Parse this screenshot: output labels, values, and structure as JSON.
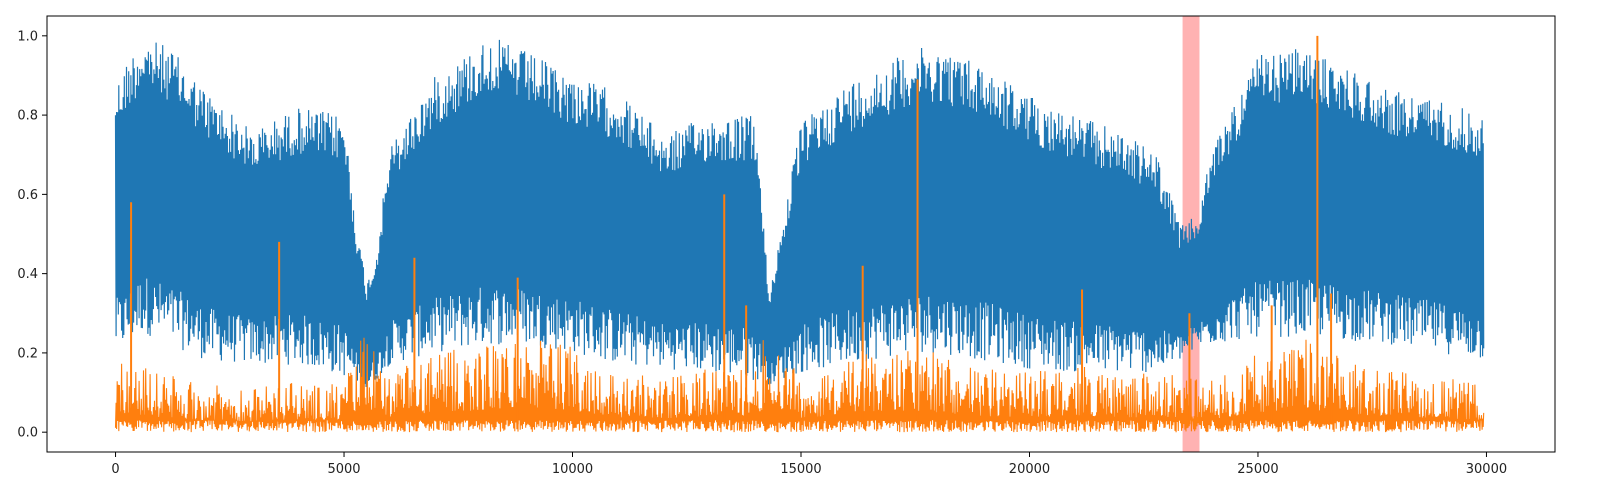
{
  "chart_data": {
    "type": "line",
    "title": "",
    "xlabel": "",
    "ylabel": "",
    "xlim": [
      -1500,
      31500
    ],
    "ylim": [
      -0.05,
      1.05
    ],
    "x_ticks": [
      0,
      5000,
      10000,
      15000,
      20000,
      25000,
      30000
    ],
    "y_ticks": [
      0.0,
      0.2,
      0.4,
      0.6,
      0.8,
      1.0
    ],
    "x_tick_labels": [
      "0",
      "5000",
      "10000",
      "15000",
      "20000",
      "25000",
      "30000"
    ],
    "y_tick_labels": [
      "0.0",
      "0.2",
      "0.4",
      "0.6",
      "0.8",
      "1.0"
    ],
    "grid": false,
    "legend": "none",
    "highlight_region": {
      "x_start": 23350,
      "x_end": 23720,
      "color": "#ff0000",
      "alpha": 0.3
    },
    "series": [
      {
        "color": "#1f77b4",
        "x_range": [
          0,
          29950
        ],
        "envelope": {
          "x": [
            0,
            300,
            600,
            1200,
            2000,
            3000,
            4000,
            5000,
            5300,
            5500,
            5700,
            6000,
            7000,
            8200,
            9000,
            10000,
            11000,
            12000,
            13000,
            14000,
            14300,
            15000,
            16000,
            17000,
            17500,
            18000,
            19000,
            20000,
            21000,
            22000,
            22800,
            23300,
            23700,
            24000,
            25000,
            26000,
            26300,
            27000,
            28000,
            29000,
            29950
          ],
          "upper": [
            0.88,
            0.95,
            1.0,
            0.97,
            0.86,
            0.76,
            0.82,
            0.8,
            0.5,
            0.38,
            0.45,
            0.72,
            0.9,
            1.0,
            0.96,
            0.9,
            0.86,
            0.75,
            0.8,
            0.8,
            0.35,
            0.78,
            0.88,
            0.94,
            0.97,
            0.97,
            0.93,
            0.85,
            0.8,
            0.76,
            0.7,
            0.52,
            0.55,
            0.72,
            0.95,
            0.97,
            0.95,
            0.92,
            0.86,
            0.84,
            0.8
          ],
          "lower": [
            0.2,
            0.22,
            0.25,
            0.22,
            0.18,
            0.17,
            0.17,
            0.14,
            0.12,
            0.1,
            0.13,
            0.17,
            0.2,
            0.22,
            0.22,
            0.2,
            0.17,
            0.16,
            0.15,
            0.13,
            0.12,
            0.15,
            0.17,
            0.19,
            0.2,
            0.2,
            0.18,
            0.16,
            0.15,
            0.15,
            0.15,
            0.18,
            0.21,
            0.22,
            0.24,
            0.24,
            0.24,
            0.23,
            0.22,
            0.2,
            0.18
          ]
        }
      },
      {
        "color": "#ff7f0e",
        "x_range": [
          0,
          29950
        ],
        "envelope": {
          "x": [
            0,
            1000,
            2000,
            3000,
            4000,
            5000,
            5400,
            6000,
            7000,
            8000,
            9000,
            10000,
            11000,
            12000,
            13000,
            14000,
            14300,
            15000,
            16000,
            17000,
            18000,
            19000,
            20000,
            21000,
            22000,
            23000,
            24000,
            25000,
            26000,
            27000,
            28000,
            29000,
            29950
          ],
          "upper": [
            0.2,
            0.15,
            0.12,
            0.11,
            0.13,
            0.12,
            0.26,
            0.15,
            0.2,
            0.22,
            0.25,
            0.22,
            0.15,
            0.14,
            0.16,
            0.17,
            0.28,
            0.14,
            0.18,
            0.22,
            0.2,
            0.16,
            0.15,
            0.17,
            0.15,
            0.15,
            0.13,
            0.2,
            0.24,
            0.18,
            0.16,
            0.14,
            0.12
          ]
        },
        "spikes": [
          {
            "x": 340,
            "y": 0.58
          },
          {
            "x": 3580,
            "y": 0.48
          },
          {
            "x": 6540,
            "y": 0.44
          },
          {
            "x": 8800,
            "y": 0.39
          },
          {
            "x": 13320,
            "y": 0.6
          },
          {
            "x": 13800,
            "y": 0.32
          },
          {
            "x": 16350,
            "y": 0.42
          },
          {
            "x": 17550,
            "y": 0.89
          },
          {
            "x": 21150,
            "y": 0.36
          },
          {
            "x": 23500,
            "y": 0.3
          },
          {
            "x": 25300,
            "y": 0.32
          },
          {
            "x": 26300,
            "y": 1.0
          },
          {
            "x": 26600,
            "y": 0.35
          }
        ]
      }
    ]
  }
}
